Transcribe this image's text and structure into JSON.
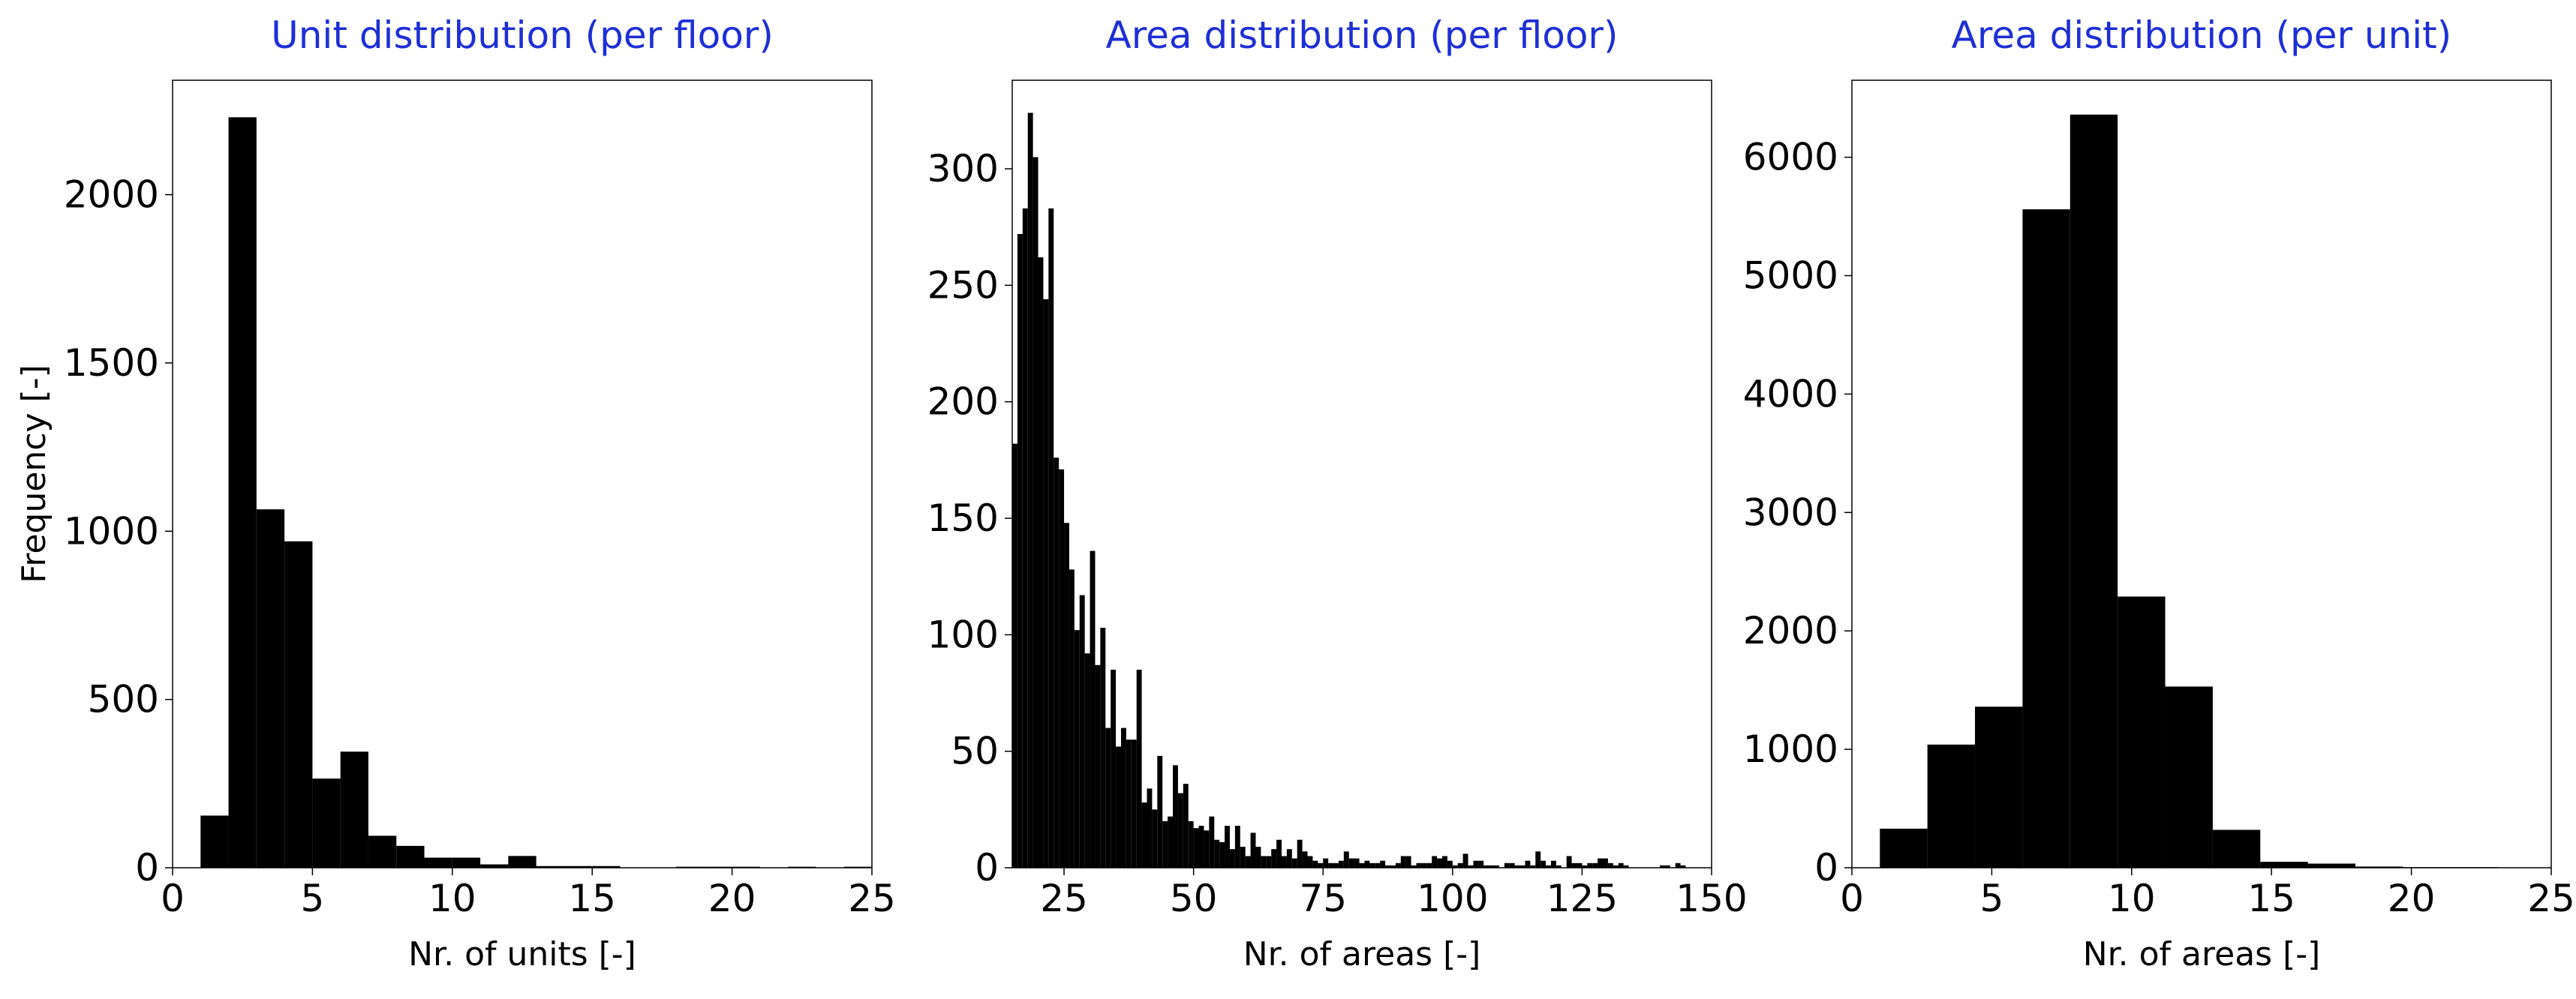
{
  "chart_data": [
    {
      "type": "bar",
      "title": "Unit distribution (per floor)",
      "xlabel": "Nr. of units [-]",
      "ylabel": "Frequency [-]",
      "xlim": [
        0,
        25
      ],
      "ylim": [
        0,
        2340
      ],
      "xticks": [
        "0",
        "5",
        "10",
        "15",
        "20",
        "25"
      ],
      "yticks": [
        "0",
        "500",
        "1000",
        "1500",
        "2000"
      ],
      "xtick_values": [
        0,
        5,
        10,
        15,
        20,
        25
      ],
      "ytick_values": [
        0,
        500,
        1000,
        1500,
        2000
      ],
      "bin_edges": [
        1,
        2,
        3,
        4,
        5,
        6,
        7,
        8,
        9,
        10,
        11,
        12,
        13,
        14,
        15,
        16,
        17,
        18,
        19,
        20,
        21,
        22,
        23,
        24,
        25
      ],
      "values": [
        155,
        2230,
        1065,
        970,
        265,
        345,
        95,
        65,
        30,
        30,
        10,
        35,
        5,
        5,
        5,
        0,
        0,
        3,
        3,
        3,
        0,
        3,
        0,
        3
      ],
      "color": "#000000",
      "grid": false,
      "legend": false
    },
    {
      "type": "bar",
      "title": "Area distribution (per floor)",
      "xlabel": "Nr. of areas [-]",
      "ylabel": "",
      "xlim": [
        15,
        150
      ],
      "ylim": [
        0,
        338
      ],
      "xticks": [
        "25",
        "50",
        "75",
        "100",
        "125",
        "150"
      ],
      "yticks": [
        "0",
        "50",
        "100",
        "150",
        "200",
        "250",
        "300"
      ],
      "xtick_values": [
        25,
        50,
        75,
        100,
        125,
        150
      ],
      "ytick_values": [
        0,
        50,
        100,
        150,
        200,
        250,
        300
      ],
      "bin_start": 15,
      "bin_width": 1,
      "values": [
        182,
        272,
        283,
        324,
        305,
        262,
        244,
        283,
        176,
        171,
        148,
        128,
        102,
        117,
        92,
        136,
        87,
        103,
        60,
        85,
        52,
        60,
        55,
        55,
        85,
        28,
        34,
        25,
        48,
        20,
        22,
        44,
        32,
        36,
        20,
        17,
        18,
        16,
        22,
        12,
        11,
        18,
        8,
        18,
        9,
        5,
        15,
        9,
        5,
        5,
        8,
        12,
        5,
        8,
        4,
        12,
        7,
        5,
        3,
        2,
        4,
        2,
        2,
        3,
        7,
        4,
        4,
        2,
        3,
        2,
        2,
        3,
        1,
        1,
        2,
        5,
        5,
        1,
        2,
        2,
        2,
        5,
        4,
        5,
        3,
        1,
        2,
        6,
        1,
        3,
        3,
        1,
        1,
        1,
        0,
        2,
        2,
        1,
        1,
        3,
        1,
        7,
        3,
        1,
        3,
        1,
        0,
        5,
        2,
        2,
        1,
        2,
        2,
        4,
        4,
        2,
        1,
        2,
        1,
        0,
        0,
        0,
        0,
        0,
        0,
        1,
        1,
        0,
        2,
        1
      ],
      "color": "#000000",
      "grid": false,
      "legend": false
    },
    {
      "type": "bar",
      "title": "Area distribution (per unit)",
      "xlabel": "Nr. of areas [-]",
      "ylabel": "",
      "xlim": [
        0,
        25
      ],
      "ylim": [
        0,
        6650
      ],
      "xticks": [
        "0",
        "5",
        "10",
        "15",
        "20",
        "25"
      ],
      "yticks": [
        "0",
        "1000",
        "2000",
        "3000",
        "4000",
        "5000",
        "6000"
      ],
      "xtick_values": [
        0,
        5,
        10,
        15,
        20,
        25
      ],
      "ytick_values": [
        0,
        1000,
        2000,
        3000,
        4000,
        5000,
        6000
      ],
      "bin_edges": [
        1,
        2.7,
        4.4,
        6.1,
        7.8,
        9.5,
        11.2,
        12.9,
        14.6,
        16.3,
        18,
        19.7,
        21.4,
        23.1
      ],
      "values": [
        330,
        1040,
        1360,
        5560,
        6360,
        2290,
        1530,
        320,
        50,
        35,
        10,
        5,
        5
      ],
      "color": "#000000",
      "grid": false,
      "legend": false
    }
  ]
}
